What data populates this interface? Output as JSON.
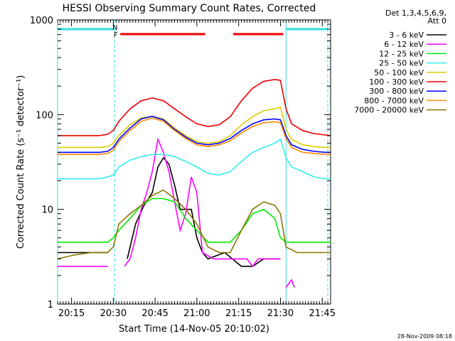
{
  "chart_data": {
    "type": "line",
    "title": "HESSI Observing Summary Count Rates, Corrected",
    "xlabel": "Start Time (14-Nov-05 20:10:02)",
    "ylabel": "Corrected Count Rate (s⁻¹ detector⁻¹)",
    "yscale": "log",
    "ylim": [
      1,
      1000
    ],
    "xlim_minutes_after_2010": [
      0,
      98
    ],
    "y_ticks": [
      "1",
      "10",
      "100",
      "1000"
    ],
    "x_ticks": [
      {
        "label": "20:15",
        "minute": 5
      },
      {
        "label": "20:30",
        "minute": 20
      },
      {
        "label": "20:45",
        "minute": 35
      },
      {
        "label": "21:00",
        "minute": 50
      },
      {
        "label": "21:15",
        "minute": 65
      },
      {
        "label": "21:30",
        "minute": 80
      },
      {
        "label": "21:45",
        "minute": 95
      }
    ],
    "legend": {
      "header": [
        "Det 1,3,4,5,6,9,",
        "Att 0"
      ],
      "placement": "right",
      "entries": [
        {
          "label": "3 - 6 keV",
          "color": "#000000"
        },
        {
          "label": "6 - 12 keV",
          "color": "#ff00ff"
        },
        {
          "label": "12 - 25 keV",
          "color": "#00ee00"
        },
        {
          "label": "25 - 50 keV",
          "color": "#33eeee"
        },
        {
          "label": "50 - 100 keV",
          "color": "#ddcc00"
        },
        {
          "label": "100 - 300 keV",
          "color": "#ee0000"
        },
        {
          "label": "300 - 800 keV",
          "color": "#0000ff"
        },
        {
          "label": "800 - 7000 keV",
          "color": "#ff8800"
        },
        {
          "label": "7000 - 20000 keV",
          "color": "#887700"
        }
      ]
    },
    "annotations": {
      "N_label": "N",
      "F_label": "F",
      "footer": "28-Nov-2009 08:18",
      "night_color": "#33dddd",
      "flare_color": "#ee0000",
      "night_intervals": [
        [
          0,
          20.5
        ],
        [
          82,
          97
        ]
      ],
      "flare_intervals": [
        [
          22.5,
          53
        ],
        [
          63,
          81
        ]
      ],
      "vertical_lines_solid": [
        0,
        82
      ],
      "vertical_lines_dashed": [
        20.5,
        97
      ]
    },
    "series": [
      {
        "name": "3 - 6 keV",
        "color": "#000000",
        "x": [
          0,
          10,
          18,
          20,
          22,
          25,
          28,
          31,
          34,
          36,
          38,
          40,
          42,
          44,
          46,
          48,
          50,
          52,
          54,
          60,
          66,
          70,
          74,
          78,
          80,
          81
        ],
        "y": [
          3.5,
          3.5,
          3.5,
          null,
          null,
          3,
          7,
          11,
          15,
          28,
          35,
          30,
          18,
          10,
          10,
          10,
          5,
          3.5,
          3,
          3.5,
          2.5,
          2.5,
          3,
          3,
          3,
          null
        ]
      },
      {
        "name": "6 - 12 keV",
        "color": "#ff00ff",
        "x": [
          0,
          8,
          14,
          18,
          20,
          22,
          24,
          26,
          28,
          30,
          32,
          34,
          36,
          38,
          40,
          42,
          44,
          46,
          48,
          50,
          52,
          56,
          60,
          64,
          68,
          70,
          72,
          75,
          78,
          80,
          81,
          82,
          84,
          85,
          86
        ],
        "y": [
          2.5,
          2.5,
          2.5,
          2.5,
          null,
          null,
          2.5,
          3,
          5,
          10,
          15,
          25,
          55,
          40,
          25,
          12,
          6,
          9,
          22,
          15,
          3.5,
          3,
          3,
          3,
          3,
          2.5,
          3,
          3,
          3,
          3,
          null,
          1.5,
          1.8,
          1.5,
          null
        ]
      },
      {
        "name": "12 - 25 keV",
        "color": "#00ee00",
        "x": [
          0,
          10,
          18,
          20,
          22,
          26,
          30,
          34,
          38,
          42,
          46,
          50,
          54,
          58,
          62,
          66,
          70,
          74,
          78,
          80,
          82,
          86,
          90,
          95,
          98
        ],
        "y": [
          4.5,
          4.5,
          4.5,
          5,
          6,
          8,
          11,
          13,
          13,
          12,
          8,
          6,
          4.5,
          4.5,
          4.5,
          6,
          9,
          10,
          8,
          5,
          4.5,
          4.5,
          4.5,
          4.5,
          4.5
        ]
      },
      {
        "name": "25 - 50 keV",
        "color": "#33eeee",
        "x": [
          0,
          10,
          15,
          18,
          20,
          22,
          26,
          30,
          34,
          38,
          42,
          46,
          50,
          54,
          58,
          62,
          66,
          70,
          74,
          78,
          80,
          82,
          84,
          88,
          92,
          96,
          98
        ],
        "y": [
          21,
          21,
          21,
          22,
          23,
          28,
          33,
          36,
          38,
          38,
          36,
          32,
          28,
          24,
          23,
          25,
          32,
          40,
          45,
          50,
          55,
          35,
          28,
          25,
          22,
          21,
          21
        ]
      },
      {
        "name": "50 - 100 keV",
        "color": "#ddcc00",
        "x": [
          0,
          10,
          15,
          18,
          20,
          22,
          26,
          30,
          34,
          38,
          42,
          46,
          50,
          54,
          58,
          62,
          66,
          70,
          74,
          78,
          80,
          82,
          84,
          88,
          92,
          96,
          98
        ],
        "y": [
          45,
          45,
          45,
          46,
          50,
          60,
          78,
          92,
          96,
          90,
          72,
          60,
          52,
          50,
          52,
          60,
          78,
          95,
          110,
          115,
          120,
          70,
          55,
          48,
          46,
          45,
          45
        ]
      },
      {
        "name": "100 - 300 keV",
        "color": "#ee0000",
        "x": [
          0,
          10,
          15,
          18,
          20,
          22,
          26,
          30,
          34,
          38,
          42,
          46,
          50,
          54,
          58,
          62,
          66,
          70,
          74,
          78,
          80,
          82,
          84,
          88,
          92,
          96,
          98
        ],
        "y": [
          60,
          60,
          60,
          62,
          68,
          85,
          115,
          140,
          150,
          140,
          115,
          95,
          80,
          75,
          78,
          95,
          140,
          190,
          225,
          235,
          230,
          115,
          80,
          68,
          63,
          61,
          60
        ]
      },
      {
        "name": "300 - 800 keV",
        "color": "#0000ff",
        "x": [
          0,
          10,
          15,
          18,
          20,
          22,
          26,
          30,
          34,
          38,
          42,
          46,
          50,
          54,
          58,
          62,
          66,
          70,
          74,
          78,
          80,
          82,
          84,
          88,
          92,
          96,
          98
        ],
        "y": [
          40,
          40,
          40,
          41,
          45,
          55,
          72,
          90,
          96,
          88,
          70,
          58,
          50,
          48,
          50,
          56,
          68,
          80,
          88,
          90,
          88,
          60,
          48,
          43,
          41,
          40,
          40
        ]
      },
      {
        "name": "800 - 7000 keV",
        "color": "#ff8800",
        "x": [
          0,
          10,
          15,
          18,
          20,
          22,
          26,
          30,
          34,
          38,
          42,
          46,
          50,
          54,
          58,
          62,
          66,
          70,
          74,
          78,
          80,
          82,
          84,
          88,
          92,
          96,
          98
        ],
        "y": [
          38,
          38,
          38,
          39,
          42,
          52,
          68,
          85,
          92,
          85,
          68,
          56,
          48,
          46,
          48,
          53,
          64,
          75,
          82,
          84,
          82,
          56,
          45,
          40,
          39,
          38,
          38
        ]
      },
      {
        "name": "7000 - 20000 keV",
        "color": "#887700",
        "x": [
          0,
          6,
          12,
          18,
          20,
          22,
          26,
          30,
          34,
          38,
          42,
          46,
          50,
          54,
          58,
          62,
          66,
          70,
          74,
          78,
          80,
          82,
          86,
          90,
          95,
          98
        ],
        "y": [
          3,
          3.3,
          3.5,
          3.5,
          4,
          7,
          9,
          11,
          14,
          16,
          13,
          10,
          7,
          4,
          3.5,
          3.5,
          6,
          10,
          12,
          11,
          9,
          4,
          3.5,
          3.5,
          3.5,
          3.5
        ]
      }
    ]
  }
}
